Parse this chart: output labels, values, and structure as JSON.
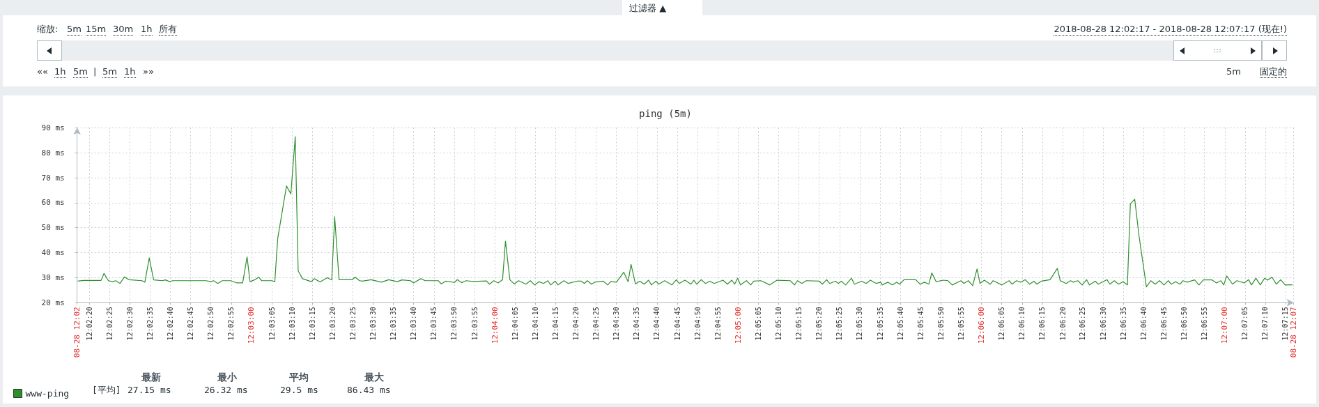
{
  "chart_data": {
    "type": "line",
    "title": "ping (5m)",
    "xlim": [
      12.03806,
      12.12139
    ],
    "xticks": [
      {
        "value": 12.03806,
        "label": "08-28 12:02"
      },
      {
        "value": 12.03889,
        "label": "12:02:20"
      },
      {
        "value": 12.04028,
        "label": "12:02:25"
      },
      {
        "value": 12.04167,
        "label": "12:02:30"
      },
      {
        "value": 12.04306,
        "label": "12:02:35"
      },
      {
        "value": 12.04444,
        "label": "12:02:40"
      },
      {
        "value": 12.04583,
        "label": "12:02:45"
      },
      {
        "value": 12.04722,
        "label": "12:02:50"
      },
      {
        "value": 12.04861,
        "label": "12:02:55"
      },
      {
        "value": 12.05,
        "label": "12:03:00"
      },
      {
        "value": 12.05139,
        "label": "12:03:05"
      },
      {
        "value": 12.05278,
        "label": "12:03:10"
      },
      {
        "value": 12.05417,
        "label": "12:03:15"
      },
      {
        "value": 12.05556,
        "label": "12:03:20"
      },
      {
        "value": 12.05694,
        "label": "12:03:25"
      },
      {
        "value": 12.05833,
        "label": "12:03:30"
      },
      {
        "value": 12.05972,
        "label": "12:03:35"
      },
      {
        "value": 12.06111,
        "label": "12:03:40"
      },
      {
        "value": 12.0625,
        "label": "12:03:45"
      },
      {
        "value": 12.06389,
        "label": "12:03:50"
      },
      {
        "value": 12.06528,
        "label": "12:03:55"
      },
      {
        "value": 12.06667,
        "label": "12:04:00"
      },
      {
        "value": 12.06806,
        "label": "12:04:05"
      },
      {
        "value": 12.06944,
        "label": "12:04:10"
      },
      {
        "value": 12.07083,
        "label": "12:04:15"
      },
      {
        "value": 12.07222,
        "label": "12:04:20"
      },
      {
        "value": 12.07361,
        "label": "12:04:25"
      },
      {
        "value": 12.075,
        "label": "12:04:30"
      },
      {
        "value": 12.07639,
        "label": "12:04:35"
      },
      {
        "value": 12.07778,
        "label": "12:04:40"
      },
      {
        "value": 12.07917,
        "label": "12:04:45"
      },
      {
        "value": 12.08056,
        "label": "12:04:50"
      },
      {
        "value": 12.08194,
        "label": "12:04:55"
      },
      {
        "value": 12.08333,
        "label": "12:05:00"
      },
      {
        "value": 12.08472,
        "label": "12:05:05"
      },
      {
        "value": 12.08611,
        "label": "12:05:10"
      },
      {
        "value": 12.0875,
        "label": "12:05:15"
      },
      {
        "value": 12.08889,
        "label": "12:05:20"
      },
      {
        "value": 12.09028,
        "label": "12:05:25"
      },
      {
        "value": 12.09167,
        "label": "12:05:30"
      },
      {
        "value": 12.09306,
        "label": "12:05:35"
      },
      {
        "value": 12.09444,
        "label": "12:05:40"
      },
      {
        "value": 12.09583,
        "label": "12:05:45"
      },
      {
        "value": 12.09722,
        "label": "12:05:50"
      },
      {
        "value": 12.09861,
        "label": "12:05:55"
      },
      {
        "value": 12.1,
        "label": "12:06:00"
      },
      {
        "value": 12.10139,
        "label": "12:06:05"
      },
      {
        "value": 12.10278,
        "label": "12:06:10"
      },
      {
        "value": 12.10417,
        "label": "12:06:15"
      },
      {
        "value": 12.10556,
        "label": "12:06:20"
      },
      {
        "value": 12.10694,
        "label": "12:06:25"
      },
      {
        "value": 12.10833,
        "label": "12:06:30"
      },
      {
        "value": 12.10972,
        "label": "12:06:35"
      },
      {
        "value": 12.11111,
        "label": "12:06:40"
      },
      {
        "value": 12.1125,
        "label": "12:06:45"
      },
      {
        "value": 12.11389,
        "label": "12:06:50"
      },
      {
        "value": 12.11528,
        "label": "12:06:55"
      },
      {
        "value": 12.11667,
        "label": "12:07:00"
      },
      {
        "value": 12.11806,
        "label": "12:07:05"
      },
      {
        "value": 12.11944,
        "label": "12:07:10"
      },
      {
        "value": 12.12083,
        "label": "12:07:15"
      },
      {
        "value": 12.12139,
        "label": "08-28 12:07"
      }
    ],
    "ylim": [
      20,
      90
    ],
    "yticks": [
      {
        "value": 20,
        "label": "20 ms"
      },
      {
        "value": 30,
        "label": "30 ms"
      },
      {
        "value": 40,
        "label": "40 ms"
      },
      {
        "value": 50,
        "label": "50 ms"
      },
      {
        "value": 60,
        "label": "60 ms"
      },
      {
        "value": 70,
        "label": "70 ms"
      },
      {
        "value": 80,
        "label": "80 ms"
      },
      {
        "value": 90,
        "label": "90 ms"
      }
    ],
    "grid": true,
    "legend": "bottom left",
    "series": [
      {
        "name": "www-ping",
        "color": "#2f8f2f",
        "x": [
          12.0381,
          12.0385,
          12.0397,
          12.0399,
          12.0402,
          12.0405,
          12.0407,
          12.041,
          12.0413,
          12.0416,
          12.0425,
          12.0427,
          12.043,
          12.0433,
          12.0439,
          12.0441,
          12.0444,
          12.0446,
          12.0469,
          12.0472,
          12.0474,
          12.0477,
          12.048,
          12.0486,
          12.049,
          12.0494,
          12.0497,
          12.0499,
          12.0502,
          12.0505,
          12.0507,
          12.0514,
          12.0516,
          12.0518,
          12.0524,
          12.0527,
          12.053,
          12.0532,
          12.0535,
          12.0541,
          12.0543,
          12.0547,
          12.0552,
          12.0555,
          12.0557,
          12.056,
          12.0569,
          12.0571,
          12.0574,
          12.0576,
          12.0582,
          12.0589,
          12.0594,
          12.06,
          12.0603,
          12.0609,
          12.0611,
          12.0616,
          12.0619,
          12.0628,
          12.063,
          12.0633,
          12.0639,
          12.0641,
          12.0644,
          12.0647,
          12.0652,
          12.0661,
          12.0663,
          12.0666,
          12.0669,
          12.0672,
          12.0674,
          12.0677,
          12.068,
          12.0683,
          12.0688,
          12.0691,
          12.0694,
          12.0697,
          12.07,
          12.0703,
          12.0705,
          12.0708,
          12.071,
          12.0714,
          12.0717,
          12.0723,
          12.0726,
          12.0728,
          12.073,
          12.0733,
          12.0735,
          12.0741,
          12.0744,
          12.0746,
          12.075,
          12.0755,
          12.0758,
          12.076,
          12.0763,
          12.0766,
          12.0769,
          12.0772,
          12.0774,
          12.0777,
          12.0779,
          12.0783,
          12.0788,
          12.0791,
          12.0793,
          12.0797,
          12.0801,
          12.0803,
          12.0805,
          12.0808,
          12.0811,
          12.0814,
          12.0817,
          12.0823,
          12.0826,
          12.0829,
          12.0831,
          12.0833,
          12.0835,
          12.0839,
          12.0842,
          12.0844,
          12.0849,
          12.0855,
          12.086,
          12.0869,
          12.0872,
          12.0874,
          12.0877,
          12.088,
          12.0889,
          12.0891,
          12.0894,
          12.0896,
          12.09,
          12.0902,
          12.0904,
          12.0907,
          12.0911,
          12.0913,
          12.0918,
          12.0921,
          12.0924,
          12.0928,
          12.0931,
          12.0932,
          12.0936,
          12.0939,
          12.0942,
          12.0944,
          12.0947,
          12.0955,
          12.0958,
          12.0961,
          12.0964,
          12.0966,
          12.0969,
          12.0974,
          12.0977,
          12.098,
          12.0986,
          12.0988,
          12.0991,
          12.0994,
          12.0997,
          12.0999,
          12.1002,
          12.1006,
          12.1008,
          12.1014,
          12.1019,
          12.1021,
          12.1024,
          12.1027,
          12.103,
          12.1033,
          12.1036,
          12.1038,
          12.1041,
          12.1047,
          12.1052,
          12.1054,
          12.1058,
          12.1061,
          12.1063,
          12.1066,
          12.1069,
          12.1072,
          12.1074,
          12.1078,
          12.108,
          12.1086,
          12.1088,
          12.1091,
          12.1094,
          12.1097,
          12.11,
          12.1102,
          12.1105,
          12.1108,
          12.1113,
          12.1116,
          12.1119,
          12.1122,
          12.1125,
          12.1128,
          12.113,
          12.1133,
          12.1136,
          12.1138,
          12.1141,
          12.1146,
          12.1149,
          12.1152,
          12.1158,
          12.1161,
          12.1164,
          12.1166,
          12.1168,
          12.1172,
          12.1175,
          12.118,
          12.1183,
          12.1185,
          12.1188,
          12.1191,
          12.1194,
          12.1196,
          12.1199,
          12.1202,
          12.1205,
          12.1208,
          12.1213
        ],
        "values": [
          28.6,
          28.9,
          28.9,
          31.7,
          28.8,
          28.4,
          28.8,
          27.7,
          30.3,
          29.2,
          28.8,
          28.2,
          37.9,
          29.1,
          28.8,
          29.1,
          28.4,
          28.8,
          28.8,
          28.4,
          28.8,
          27.7,
          28.8,
          28.8,
          27.9,
          27.9,
          38.3,
          28.4,
          29.1,
          30.2,
          28.8,
          28.8,
          28.4,
          45.7,
          66.7,
          63.5,
          86.43,
          32.7,
          29.6,
          28.4,
          29.6,
          28.3,
          30.0,
          29.1,
          54.4,
          29.2,
          29.2,
          30.2,
          28.8,
          28.6,
          29.2,
          28.2,
          29.2,
          28.4,
          29.1,
          28.8,
          27.9,
          29.6,
          28.8,
          28.8,
          27.5,
          28.6,
          28.1,
          29.2,
          28.0,
          28.8,
          28.5,
          28.7,
          27.4,
          28.8,
          27.9,
          29.2,
          44.6,
          29.2,
          27.5,
          28.8,
          27.4,
          28.8,
          27.1,
          28.4,
          27.7,
          28.8,
          27.1,
          28.6,
          27.1,
          28.8,
          27.7,
          28.6,
          28.6,
          27.7,
          28.8,
          27.4,
          28.2,
          28.6,
          27.1,
          28.4,
          28.2,
          32.2,
          28.4,
          35.3,
          27.5,
          28.6,
          27.4,
          29.0,
          27.1,
          28.6,
          27.4,
          28.8,
          27.1,
          29.2,
          27.7,
          29.0,
          27.4,
          29.0,
          27.4,
          29.2,
          27.7,
          28.6,
          27.7,
          29.0,
          27.4,
          29.0,
          27.4,
          29.8,
          27.1,
          28.8,
          27.1,
          28.6,
          28.8,
          27.1,
          29.0,
          28.8,
          27.1,
          28.8,
          27.7,
          28.8,
          28.6,
          27.4,
          29.2,
          27.7,
          28.6,
          27.7,
          28.6,
          27.1,
          29.8,
          27.4,
          28.6,
          27.7,
          29.0,
          27.7,
          28.2,
          27.1,
          28.2,
          27.1,
          28.2,
          27.4,
          29.2,
          29.2,
          27.4,
          28.2,
          27.4,
          31.9,
          28.4,
          29.0,
          28.8,
          27.1,
          28.8,
          27.7,
          28.8,
          26.8,
          33.5,
          27.7,
          29.0,
          27.4,
          28.8,
          27.1,
          28.8,
          27.4,
          28.8,
          28.2,
          29.2,
          27.4,
          28.6,
          27.4,
          28.6,
          29.2,
          33.7,
          28.8,
          27.7,
          28.8,
          28.2,
          28.8,
          27.1,
          29.2,
          27.1,
          28.6,
          27.4,
          29.2,
          27.4,
          28.8,
          27.4,
          28.4,
          27.1,
          59.5,
          61.4,
          46.5,
          26.32,
          28.8,
          27.4,
          28.8,
          27.1,
          28.8,
          27.4,
          28.4,
          27.4,
          28.8,
          28.2,
          29.1,
          27.1,
          29.1,
          29.1,
          27.9,
          28.8,
          27.1,
          30.7,
          27.4,
          28.8,
          27.9,
          29.2,
          27.1,
          29.8,
          27.1,
          29.8,
          29.0,
          30.2,
          27.4,
          29.2,
          27.1,
          27.15
        ]
      }
    ],
    "annotations": [
      "过滤器 ▲",
      "缩放:",
      "5m",
      "15m",
      "30m",
      "1h",
      "所有",
      "2018-08-28 12:02:17 - 2018-08-28 12:07:17 (现在!)",
      "««",
      "1h",
      "5m",
      "|",
      "5m",
      "1h",
      "»»",
      "5m",
      "固定的",
      "最新",
      "最小",
      "平均",
      "最大",
      "[平均]",
      "27.15 ms",
      "26.32 ms",
      "29.5 ms",
      "86.43 ms"
    ]
  }
}
